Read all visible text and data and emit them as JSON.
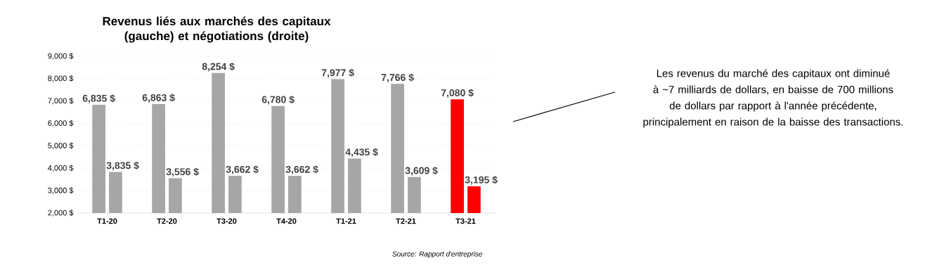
{
  "chart_data": {
    "type": "bar",
    "title": "Revenus liés aux marchés des capitaux (gauche) et négotiations (droite)",
    "categories": [
      "T1-20",
      "T2-20",
      "T3-20",
      "T4-20",
      "T1-21",
      "T2-21",
      "T3-21"
    ],
    "series": [
      {
        "colors": [
          "#a6a6a6",
          "#a6a6a6",
          "#a6a6a6",
          "#a6a6a6",
          "#a6a6a6",
          "#a6a6a6",
          "#ff0000"
        ],
        "values": [
          6835,
          6863,
          8254,
          6780,
          7977,
          7766,
          7080
        ],
        "value_labels": [
          "6,835 $",
          "6,863 $",
          "8,254 $",
          "6,780 $",
          "7,977 $",
          "7,766 $",
          "7,080 $"
        ]
      },
      {
        "colors": [
          "#a6a6a6",
          "#a6a6a6",
          "#a6a6a6",
          "#a6a6a6",
          "#a6a6a6",
          "#a6a6a6",
          "#ff0000"
        ],
        "values": [
          3835,
          3556,
          3662,
          3662,
          4435,
          3609,
          3195
        ],
        "value_labels": [
          "3,835 $",
          "3,556 $",
          "3,662 $",
          "3,662 $",
          "4,435 $",
          "3,609 $",
          "3,195 $"
        ]
      }
    ],
    "ylim": [
      2000,
      9000
    ],
    "yticks": [
      {
        "value": 2000,
        "label": "2,000 $"
      },
      {
        "value": 3000,
        "label": "3,000 $"
      },
      {
        "value": 4000,
        "label": "4,000 $"
      },
      {
        "value": 5000,
        "label": "5,000 $"
      },
      {
        "value": 6000,
        "label": "6,000 $"
      },
      {
        "value": 7000,
        "label": "7,000 $"
      },
      {
        "value": 8000,
        "label": "8,000 $"
      },
      {
        "value": 9000,
        "label": "9,000 $"
      }
    ],
    "grid": "y",
    "annotations": [
      "Les revenus du marché des capitaux ont diminué à ~7 milliards de dollars, en baisse de 700 millions de dollars par rapport à l'année précédente, principalement en raison de la baisse des transactions.",
      "Source: Rapport d'entreprise"
    ]
  }
}
